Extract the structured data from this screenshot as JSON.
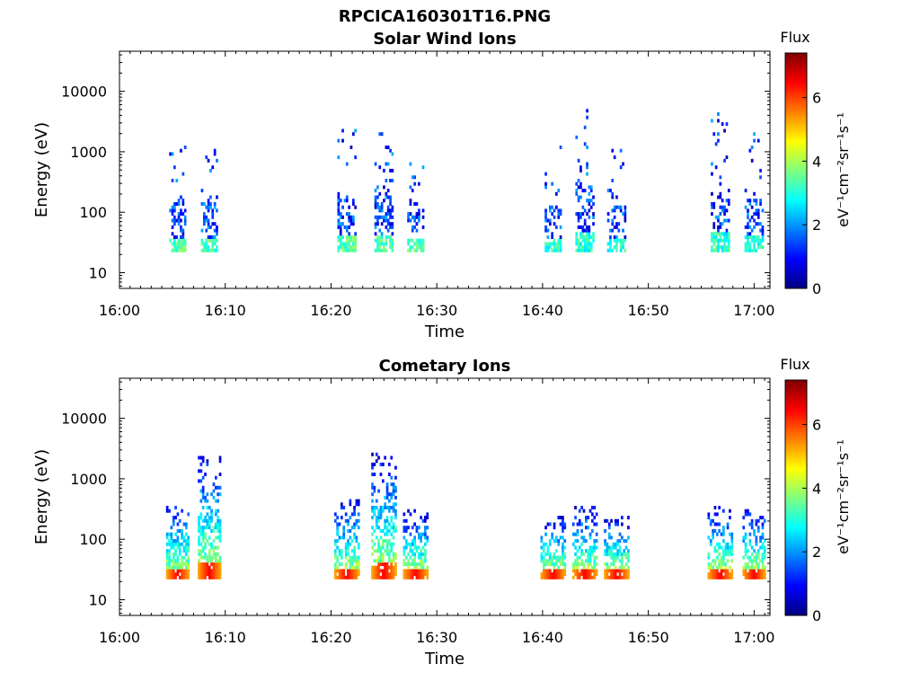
{
  "figure_title": "RPCICA160301T16.PNG",
  "chart_data": [
    {
      "type": "heatmap",
      "title": "Solar Wind Ions",
      "xlabel": "Time",
      "ylabel": "Energy (eV)",
      "yscale": "log",
      "ylim": [
        5.5,
        46000
      ],
      "xlim": [
        "16:00",
        "17:01.5"
      ],
      "x_ticks": [
        "16:00",
        "16:10",
        "16:20",
        "16:30",
        "16:40",
        "16:50",
        "17:00"
      ],
      "y_ticks": [
        "10",
        "100",
        "1000",
        "10000"
      ],
      "colorbar": {
        "label": "Flux",
        "unit": "eV⁻¹cm⁻²sr⁻¹s⁻¹",
        "range": [
          0,
          7.4
        ],
        "ticks": [
          "0",
          "2",
          "4",
          "6"
        ],
        "colormap": "jet"
      },
      "bursts": [
        {
          "t": "16:05.5",
          "duration_min": 1.6,
          "max_energy_eV": 1400,
          "peak_flux": 4.0
        },
        {
          "t": "16:08.5",
          "duration_min": 1.6,
          "max_energy_eV": 1400,
          "peak_flux": 4.0
        },
        {
          "t": "16:21.5",
          "duration_min": 1.8,
          "max_energy_eV": 2200,
          "peak_flux": 4.0
        },
        {
          "t": "16:25.0",
          "duration_min": 1.8,
          "max_energy_eV": 2200,
          "peak_flux": 4.0
        },
        {
          "t": "16:28.0",
          "duration_min": 1.6,
          "max_energy_eV": 800,
          "peak_flux": 4.0
        },
        {
          "t": "16:41.0",
          "duration_min": 1.6,
          "max_energy_eV": 1200,
          "peak_flux": 3.6
        },
        {
          "t": "16:44.0",
          "duration_min": 1.8,
          "max_energy_eV": 6500,
          "peak_flux": 3.6
        },
        {
          "t": "16:47.0",
          "duration_min": 1.8,
          "max_energy_eV": 1200,
          "peak_flux": 3.6
        },
        {
          "t": "16:56.8",
          "duration_min": 1.8,
          "max_energy_eV": 4500,
          "peak_flux": 3.6
        },
        {
          "t": "17:00.0",
          "duration_min": 1.8,
          "max_energy_eV": 2000,
          "peak_flux": 3.6
        }
      ]
    },
    {
      "type": "heatmap",
      "title": "Cometary Ions",
      "xlabel": "Time",
      "ylabel": "Energy (eV)",
      "yscale": "log",
      "ylim": [
        5.5,
        46000
      ],
      "xlim": [
        "16:00",
        "17:01.5"
      ],
      "x_ticks": [
        "16:00",
        "16:10",
        "16:20",
        "16:30",
        "16:40",
        "16:50",
        "17:00"
      ],
      "y_ticks": [
        "10",
        "100",
        "1000",
        "10000"
      ],
      "colorbar": {
        "label": "Flux",
        "unit": "eV⁻¹cm⁻²sr⁻¹s⁻¹",
        "range": [
          0,
          7.4
        ],
        "ticks": [
          "0",
          "2",
          "4",
          "6"
        ],
        "colormap": "jet"
      },
      "bursts": [
        {
          "t": "16:05.5",
          "duration_min": 2.2,
          "max_energy_eV": 400,
          "peak_flux": 6.5
        },
        {
          "t": "16:08.5",
          "duration_min": 2.2,
          "max_energy_eV": 2600,
          "peak_flux": 6.5
        },
        {
          "t": "16:21.5",
          "duration_min": 2.4,
          "max_energy_eV": 420,
          "peak_flux": 6.5
        },
        {
          "t": "16:25.0",
          "duration_min": 2.4,
          "max_energy_eV": 2400,
          "peak_flux": 6.5
        },
        {
          "t": "16:28.0",
          "duration_min": 2.4,
          "max_energy_eV": 280,
          "peak_flux": 6.5
        },
        {
          "t": "16:41.0",
          "duration_min": 2.4,
          "max_energy_eV": 220,
          "peak_flux": 6.5
        },
        {
          "t": "16:44.0",
          "duration_min": 2.4,
          "max_energy_eV": 330,
          "peak_flux": 6.5
        },
        {
          "t": "16:47.0",
          "duration_min": 2.4,
          "max_energy_eV": 220,
          "peak_flux": 6.5
        },
        {
          "t": "16:56.8",
          "duration_min": 2.4,
          "max_energy_eV": 320,
          "peak_flux": 6.5
        },
        {
          "t": "17:00.0",
          "duration_min": 2.2,
          "max_energy_eV": 300,
          "peak_flux": 6.5
        }
      ]
    }
  ]
}
